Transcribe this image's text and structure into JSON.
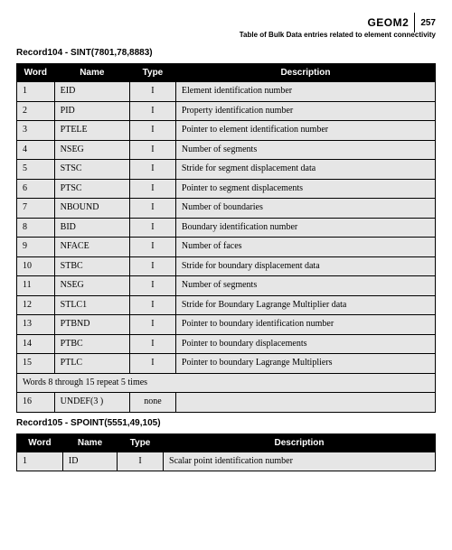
{
  "header": {
    "section_code": "GEOM2",
    "page_number": "257",
    "subtitle": "Table of Bulk Data entries related to element connectivity"
  },
  "records": [
    {
      "title": "Record104 - SINT(7801,78,8883)",
      "table_class": "t1",
      "columns": [
        "Word",
        "Name",
        "Type",
        "Description"
      ],
      "rows": [
        {
          "word": "1",
          "name": "EID",
          "type": "I",
          "desc": "Element identification number"
        },
        {
          "word": "2",
          "name": "PID",
          "type": "I",
          "desc": "Property identification number"
        },
        {
          "word": "3",
          "name": "PTELE",
          "type": "I",
          "desc": "Pointer to element identification number"
        },
        {
          "word": "4",
          "name": "NSEG",
          "type": "I",
          "desc": "Number of segments"
        },
        {
          "word": "5",
          "name": "STSC",
          "type": "I",
          "desc": "Stride for segment displacement data"
        },
        {
          "word": "6",
          "name": "PTSC",
          "type": "I",
          "desc": "Pointer to segment displacements"
        },
        {
          "word": "7",
          "name": "NBOUND",
          "type": "I",
          "desc": "Number of boundaries"
        },
        {
          "word": "8",
          "name": "BID",
          "type": "I",
          "desc": "Boundary identification number"
        },
        {
          "word": "9",
          "name": "NFACE",
          "type": "I",
          "desc": "Number of faces"
        },
        {
          "word": "10",
          "name": "STBC",
          "type": "I",
          "desc": "Stride for boundary displacement data"
        },
        {
          "word": "11",
          "name": "NSEG",
          "type": "I",
          "desc": "Number of segments"
        },
        {
          "word": "12",
          "name": "STLC1",
          "type": "I",
          "desc": "Stride for Boundary Lagrange Multiplier data"
        },
        {
          "word": "13",
          "name": "PTBND",
          "type": "I",
          "desc": "Pointer to boundary identification number"
        },
        {
          "word": "14",
          "name": "PTBC",
          "type": "I",
          "desc": "Pointer to boundary displacements"
        },
        {
          "word": "15",
          "name": "PTLC",
          "type": "I",
          "desc": "Pointer to boundary Lagrange Multipliers"
        }
      ],
      "note": "Words 8 through 15 repeat 5 times",
      "tail_rows": [
        {
          "word": "16",
          "name": "UNDEF(3 )",
          "type": "none",
          "desc": ""
        }
      ]
    },
    {
      "title": "Record105 - SPOINT(5551,49,105)",
      "table_class": "t2",
      "columns": [
        "Word",
        "Name",
        "Type",
        "Description"
      ],
      "rows": [
        {
          "word": "1",
          "name": "ID",
          "type": "I",
          "desc": "Scalar point identification number"
        }
      ]
    }
  ]
}
